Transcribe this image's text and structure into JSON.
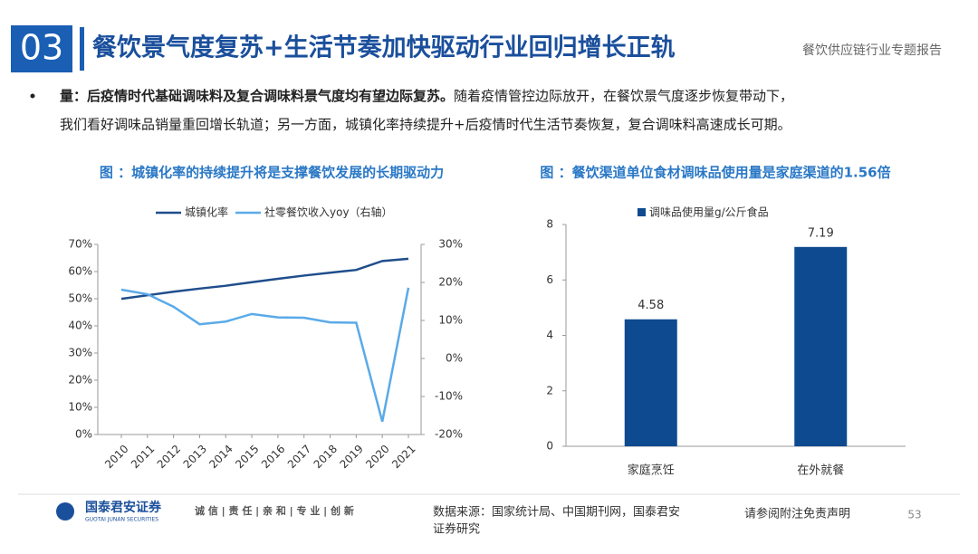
{
  "header": {
    "number": "03",
    "title": "餐饮景气度复苏+生活节奏加快驱动行业回归增长正轨",
    "report": "餐饮供应链行业专题报告"
  },
  "bullet": {
    "lead": "量：后疫情时代基础调味料及复合调味料景气度均有望边际复苏。",
    "line1": "随着疫情管控边际放开，在餐饮景气度逐步恢复带动下，",
    "line2": "我们看好调味品销量重回增长轨道；另一方面，城镇化率持续提升+后疫情时代生活节奏恢复，复合调味料高速成长可期。"
  },
  "chart_data": [
    {
      "type": "line",
      "title": "图 ：城镇化率的持续提升将是支撑餐饮发展的长期驱动力",
      "categories": [
        "2010",
        "2011",
        "2012",
        "2013",
        "2014",
        "2015",
        "2016",
        "2017",
        "2018",
        "2019",
        "2020",
        "2021"
      ],
      "series": [
        {
          "name": "城镇化率",
          "color": "#1f4e8c",
          "values": [
            49.95,
            51.27,
            52.57,
            53.73,
            54.77,
            56.1,
            57.35,
            58.52,
            59.58,
            60.6,
            63.89,
            64.72
          ]
        },
        {
          "name": "社零餐饮收入yoy（右轴）",
          "color": "#5aaae8",
          "axis": "y2",
          "values": [
            18.1,
            16.9,
            13.6,
            9.0,
            9.7,
            11.7,
            10.8,
            10.7,
            9.5,
            9.4,
            -16.6,
            18.6
          ]
        }
      ],
      "ylim": [
        0,
        70
      ],
      "yticks": [
        {
          "value": 0,
          "label": "0%"
        },
        {
          "value": 10,
          "label": "10%"
        },
        {
          "value": 20,
          "label": "20%"
        },
        {
          "value": 30,
          "label": "30%"
        },
        {
          "value": 40,
          "label": "40%"
        },
        {
          "value": 50,
          "label": "50%"
        },
        {
          "value": 60,
          "label": "60%"
        },
        {
          "value": 70,
          "label": "70%"
        }
      ],
      "y2lim": [
        -20,
        30
      ],
      "y2ticks": [
        {
          "value": -20,
          "label": "-20%"
        },
        {
          "value": -10,
          "label": "-10%"
        },
        {
          "value": 0,
          "label": "0%"
        },
        {
          "value": 10,
          "label": "10%"
        },
        {
          "value": 20,
          "label": "20%"
        },
        {
          "value": 30,
          "label": "30%"
        }
      ]
    },
    {
      "type": "bar",
      "title": "图 ：餐饮渠道单位食材调味品使用量是家庭渠道的1.56倍",
      "categories": [
        "家庭烹饪",
        "在外就餐"
      ],
      "series": [
        {
          "name": "调味品使用量g/公斤食品",
          "color": "#0d4a8f",
          "values": [
            4.58,
            7.19
          ]
        }
      ],
      "ylim": [
        0,
        8
      ],
      "yticks": [
        0,
        2,
        4,
        6,
        8
      ]
    }
  ],
  "footer": {
    "company": "国泰君安证券",
    "company_en": "GUOTAI JUNAN SECURITIES",
    "slogan": "诚 信 | 责 任 | 亲 和 | 专 业 | 创 新",
    "source_1": "数据来源：国家统计局、中国期刊网，国泰君安",
    "source_2": "证券研究",
    "disclaimer": "请参阅附注免责声明",
    "page": "53"
  }
}
